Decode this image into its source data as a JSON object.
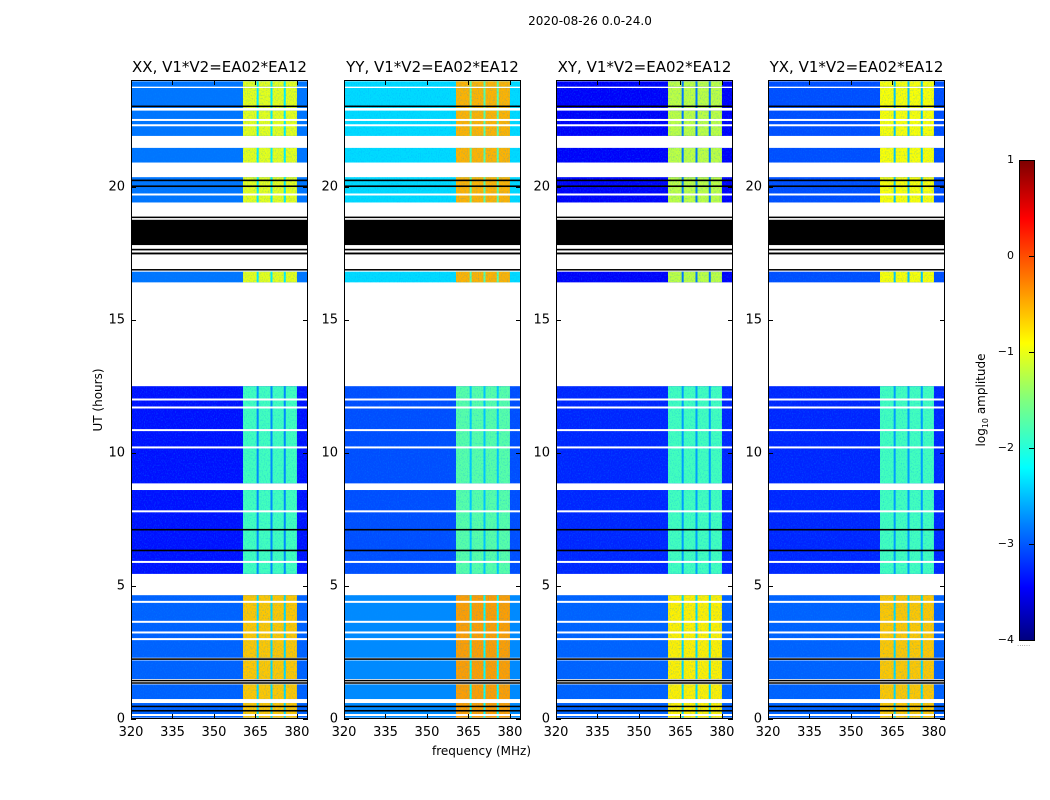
{
  "suptitle": "2020-08-26 0.0-24.0",
  "colors": {
    "flagged": "#000000",
    "gap": "#ffffff"
  },
  "chart_data": {
    "type": "heatmap",
    "title": "2020-08-26 0.0-24.0",
    "xlabel": "frequency (MHz)",
    "ylabel": "UT (hours)",
    "xlim": [
      320,
      384
    ],
    "ylim": [
      0,
      24
    ],
    "xticks": [
      "320",
      "335",
      "350",
      "365",
      "380"
    ],
    "xtick_values": [
      320,
      335,
      350,
      365,
      380
    ],
    "yticks": [
      "0",
      "5",
      "10",
      "15",
      "20"
    ],
    "ytick_values": [
      0,
      5,
      10,
      15,
      20
    ],
    "colorbar": {
      "label_main": "log",
      "label_sub": "10",
      "label_rest": " amplitude",
      "range": [
        -4,
        1
      ],
      "ticks": [
        "1",
        "0",
        "−1",
        "−2",
        "−3",
        "−4"
      ],
      "tick_values": [
        1,
        0,
        -1,
        -2,
        -3,
        -4
      ],
      "colormap": "jet",
      "extra_text": "......"
    },
    "bright_band_mhz": [
      360.5,
      380
    ],
    "band_separators_mhz": [
      365.8,
      370.8,
      375.6
    ],
    "data_segments_hours": [
      {
        "t": [
          0.05,
          0.6
        ],
        "group": "low"
      },
      {
        "t": [
          0.75,
          1.3
        ],
        "group": "low"
      },
      {
        "t": [
          1.5,
          2.2
        ],
        "group": "low"
      },
      {
        "t": [
          2.3,
          4.65
        ],
        "group": "low"
      },
      {
        "t": [
          5.45,
          8.6
        ],
        "group": "mid"
      },
      {
        "t": [
          8.85,
          12.5
        ],
        "group": "mid"
      },
      {
        "t": [
          16.4,
          16.8
        ],
        "group": "high"
      },
      {
        "t": [
          19.4,
          20.35
        ],
        "group": "high"
      },
      {
        "t": [
          20.9,
          21.45
        ],
        "group": "high"
      },
      {
        "t": [
          21.9,
          22.85
        ],
        "group": "high"
      },
      {
        "t": [
          22.95,
          23.7
        ],
        "group": "high"
      },
      {
        "t": [
          23.75,
          23.95
        ],
        "group": "high"
      }
    ],
    "flagged_segments_hours": [
      [
        17.45,
        17.52
      ],
      [
        17.6,
        17.66
      ],
      [
        17.8,
        18.75
      ],
      [
        18.82,
        18.87
      ],
      [
        0.28,
        0.34
      ],
      [
        0.45,
        0.5
      ],
      [
        1.33,
        1.38
      ],
      [
        1.42,
        1.47
      ],
      [
        2.22,
        2.28
      ],
      [
        6.3,
        6.36
      ],
      [
        7.08,
        7.14
      ],
      [
        19.98,
        20.04
      ],
      [
        20.2,
        20.26
      ],
      [
        23.0,
        23.04
      ],
      [
        16.85,
        16.9
      ]
    ],
    "gap_lines_hours": [
      0.15,
      3.0,
      3.25,
      3.65,
      4.4,
      5.9,
      7.8,
      10.2,
      10.85,
      11.7,
      12.0,
      19.7,
      21.8,
      22.3,
      22.5
    ],
    "panels": [
      {
        "title": "XX, V1*V2=EA02*EA12",
        "levels": {
          "low": {
            "bg": -2.9,
            "band": -0.6
          },
          "mid": {
            "bg": -3.3,
            "band": -1.8
          },
          "high": {
            "bg": -2.8,
            "band": -1.0
          }
        }
      },
      {
        "title": "YY, V1*V2=EA02*EA12",
        "levels": {
          "low": {
            "bg": -2.7,
            "band": -0.4
          },
          "mid": {
            "bg": -3.0,
            "band": -1.7
          },
          "high": {
            "bg": -2.3,
            "band": -0.5
          }
        }
      },
      {
        "title": "XY, V1*V2=EA02*EA12",
        "levels": {
          "low": {
            "bg": -2.9,
            "band": -0.8
          },
          "mid": {
            "bg": -3.2,
            "band": -1.8
          },
          "high": {
            "bg": -3.4,
            "band": -1.2
          }
        }
      },
      {
        "title": "YX, V1*V2=EA02*EA12",
        "levels": {
          "low": {
            "bg": -2.9,
            "band": -0.6
          },
          "mid": {
            "bg": -3.2,
            "band": -1.8
          },
          "high": {
            "bg": -3.0,
            "band": -0.9
          }
        }
      }
    ]
  }
}
